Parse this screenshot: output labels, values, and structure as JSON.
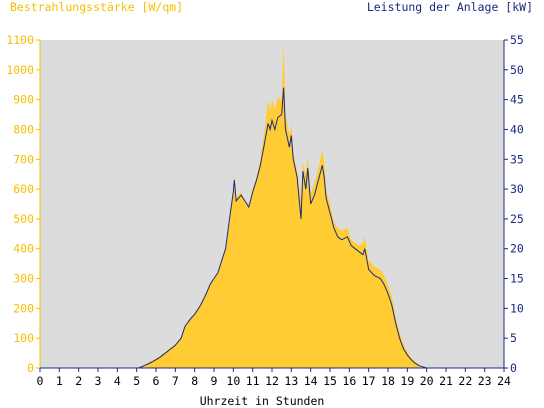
{
  "chart_data": {
    "type": "area",
    "left_axis_title": "Bestrahlungsstärke [W/qm]",
    "right_axis_title": "Leistung der Anlage [kW]",
    "xlabel": "Uhrzeit in Stunden",
    "x_ticks": [
      "0",
      "1",
      "2",
      "3",
      "4",
      "5",
      "6",
      "7",
      "8",
      "9",
      "10",
      "11",
      "12",
      "13",
      "14",
      "15",
      "16",
      "17",
      "18",
      "19",
      "20",
      "21",
      "22",
      "23",
      "24"
    ],
    "y_left_ticks": [
      "0",
      "100",
      "200",
      "300",
      "400",
      "500",
      "600",
      "700",
      "800",
      "900",
      "1000",
      "1100"
    ],
    "y_right_ticks": [
      "0",
      "5",
      "10",
      "15",
      "20",
      "25",
      "30",
      "35",
      "40",
      "45",
      "50",
      "55"
    ],
    "xlim": [
      0,
      24
    ],
    "ylim_left": [
      0,
      1100
    ],
    "ylim_right": [
      0,
      55
    ],
    "grid": false,
    "colors": {
      "plot_background": "#dcdcdc",
      "irradiance_fill": "#ffcc33",
      "power_line": "#1c2a80",
      "left_axis": "#f5c000",
      "right_axis": "#1c2a80"
    },
    "series": [
      {
        "axis": "left",
        "style": "filled-area",
        "points": [
          [
            0,
            0
          ],
          [
            5.1,
            0
          ],
          [
            5.4,
            10
          ],
          [
            5.8,
            25
          ],
          [
            6.2,
            40
          ],
          [
            6.6,
            60
          ],
          [
            7.0,
            80
          ],
          [
            7.3,
            100
          ],
          [
            7.5,
            140
          ],
          [
            7.8,
            170
          ],
          [
            8.0,
            185
          ],
          [
            8.3,
            215
          ],
          [
            8.6,
            250
          ],
          [
            8.8,
            285
          ],
          [
            9.0,
            300
          ],
          [
            9.2,
            320
          ],
          [
            9.4,
            360
          ],
          [
            9.6,
            400
          ],
          [
            9.8,
            500
          ],
          [
            10.0,
            600
          ],
          [
            10.05,
            650
          ],
          [
            10.15,
            570
          ],
          [
            10.4,
            590
          ],
          [
            10.6,
            560
          ],
          [
            10.8,
            540
          ],
          [
            11.0,
            600
          ],
          [
            11.2,
            640
          ],
          [
            11.4,
            700
          ],
          [
            11.6,
            790
          ],
          [
            11.8,
            900
          ],
          [
            11.9,
            860
          ],
          [
            12.0,
            900
          ],
          [
            12.15,
            870
          ],
          [
            12.3,
            910
          ],
          [
            12.5,
            900
          ],
          [
            12.6,
            1100
          ],
          [
            12.7,
            850
          ],
          [
            12.9,
            780
          ],
          [
            13.0,
            820
          ],
          [
            13.1,
            720
          ],
          [
            13.3,
            660
          ],
          [
            13.5,
            560
          ],
          [
            13.6,
            690
          ],
          [
            13.75,
            650
          ],
          [
            13.85,
            710
          ],
          [
            14.0,
            580
          ],
          [
            14.2,
            620
          ],
          [
            14.4,
            670
          ],
          [
            14.6,
            730
          ],
          [
            14.7,
            690
          ],
          [
            14.8,
            600
          ],
          [
            15.0,
            550
          ],
          [
            15.2,
            490
          ],
          [
            15.4,
            470
          ],
          [
            15.6,
            460
          ],
          [
            15.9,
            470
          ],
          [
            16.1,
            430
          ],
          [
            16.3,
            420
          ],
          [
            16.5,
            410
          ],
          [
            16.7,
            420
          ],
          [
            16.8,
            440
          ],
          [
            17.0,
            360
          ],
          [
            17.3,
            340
          ],
          [
            17.6,
            330
          ],
          [
            17.8,
            310
          ],
          [
            18.0,
            280
          ],
          [
            18.2,
            240
          ],
          [
            18.4,
            170
          ],
          [
            18.6,
            120
          ],
          [
            18.8,
            80
          ],
          [
            19.0,
            55
          ],
          [
            19.2,
            35
          ],
          [
            19.4,
            20
          ],
          [
            19.6,
            10
          ],
          [
            19.8,
            5
          ],
          [
            20.0,
            0
          ],
          [
            24,
            0
          ]
        ]
      },
      {
        "axis": "right",
        "style": "line",
        "points": [
          [
            0,
            0
          ],
          [
            5.1,
            0
          ],
          [
            5.4,
            0.4
          ],
          [
            5.8,
            1.0
          ],
          [
            6.2,
            1.8
          ],
          [
            6.6,
            2.8
          ],
          [
            7.0,
            3.8
          ],
          [
            7.3,
            5.0
          ],
          [
            7.5,
            7.0
          ],
          [
            7.8,
            8.3
          ],
          [
            8.0,
            9.0
          ],
          [
            8.3,
            10.5
          ],
          [
            8.6,
            12.5
          ],
          [
            8.8,
            14.0
          ],
          [
            9.0,
            15.0
          ],
          [
            9.2,
            16.0
          ],
          [
            9.4,
            18.0
          ],
          [
            9.6,
            20.0
          ],
          [
            9.8,
            25.0
          ],
          [
            10.0,
            29.5
          ],
          [
            10.05,
            31.5
          ],
          [
            10.15,
            28.0
          ],
          [
            10.4,
            29.0
          ],
          [
            10.6,
            28.0
          ],
          [
            10.8,
            27.0
          ],
          [
            11.0,
            29.5
          ],
          [
            11.2,
            31.5
          ],
          [
            11.4,
            34.0
          ],
          [
            11.6,
            37.5
          ],
          [
            11.8,
            41.0
          ],
          [
            11.9,
            40.0
          ],
          [
            12.0,
            41.5
          ],
          [
            12.15,
            40.0
          ],
          [
            12.3,
            42.0
          ],
          [
            12.5,
            42.5
          ],
          [
            12.6,
            47.0
          ],
          [
            12.7,
            40.0
          ],
          [
            12.9,
            37.0
          ],
          [
            13.0,
            39.0
          ],
          [
            13.1,
            35.0
          ],
          [
            13.3,
            32.0
          ],
          [
            13.5,
            25.0
          ],
          [
            13.6,
            33.0
          ],
          [
            13.75,
            30.0
          ],
          [
            13.85,
            33.5
          ],
          [
            14.0,
            27.5
          ],
          [
            14.2,
            29.0
          ],
          [
            14.4,
            31.5
          ],
          [
            14.6,
            34.0
          ],
          [
            14.7,
            32.0
          ],
          [
            14.8,
            28.5
          ],
          [
            15.0,
            26.0
          ],
          [
            15.2,
            23.5
          ],
          [
            15.4,
            22.0
          ],
          [
            15.6,
            21.5
          ],
          [
            15.9,
            22.0
          ],
          [
            16.1,
            20.5
          ],
          [
            16.3,
            20.0
          ],
          [
            16.5,
            19.5
          ],
          [
            16.7,
            19.0
          ],
          [
            16.8,
            20.0
          ],
          [
            17.0,
            16.5
          ],
          [
            17.3,
            15.5
          ],
          [
            17.6,
            15.0
          ],
          [
            17.8,
            14.0
          ],
          [
            18.0,
            12.5
          ],
          [
            18.2,
            10.5
          ],
          [
            18.4,
            7.5
          ],
          [
            18.6,
            5.0
          ],
          [
            18.8,
            3.2
          ],
          [
            19.0,
            2.2
          ],
          [
            19.2,
            1.4
          ],
          [
            19.4,
            0.8
          ],
          [
            19.6,
            0.4
          ],
          [
            19.8,
            0.2
          ],
          [
            20.0,
            0
          ],
          [
            24,
            0
          ]
        ]
      }
    ]
  }
}
